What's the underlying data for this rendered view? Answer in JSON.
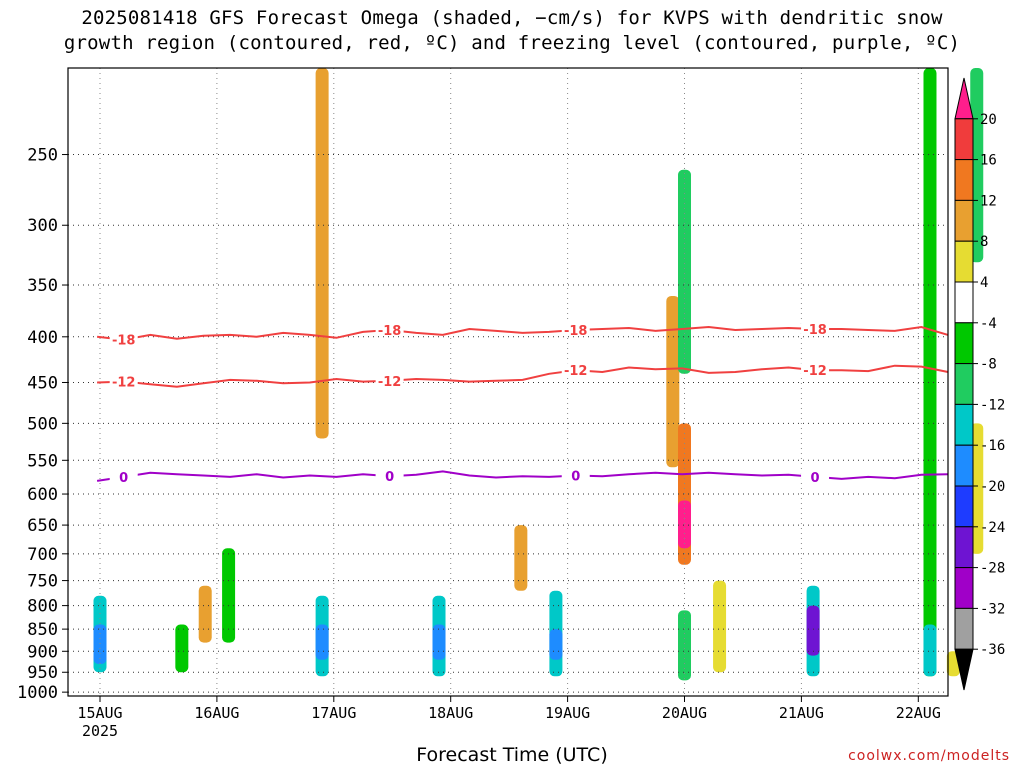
{
  "title_line1": "2025081418 GFS Forecast Omega (shaded, −cm/s) for KVPS with dendritic snow",
  "title_line2": "growth region (contoured, red, ºC) and freezing level (contoured, purple, ºC)",
  "credit": "coolwx.com/modelts",
  "chart_data": {
    "type": "heatmap",
    "title": "2025081418 GFS Forecast Omega (shaded, −cm/s) for KVPS with dendritic snow growth region (contoured, red, ºC) and freezing level (contoured, purple, ºC)",
    "xlabel": "Forecast Time (UTC)",
    "ylabel": "",
    "x_ticks": [
      "15AUG",
      "16AUG",
      "17AUG",
      "18AUG",
      "19AUG",
      "20AUG",
      "21AUG",
      "22AUG"
    ],
    "x_year_label": "2025",
    "y_ticks": [
      250,
      300,
      350,
      400,
      450,
      500,
      550,
      600,
      650,
      700,
      750,
      800,
      850,
      900,
      950,
      1000
    ],
    "ylim": [
      1010,
      200
    ],
    "grid": true,
    "colorbar": {
      "ticks": [
        20,
        16,
        12,
        8,
        4,
        -4,
        -8,
        -12,
        -16,
        -20,
        -24,
        -28,
        -32,
        -36
      ],
      "colors": [
        "#ff1e8c",
        "#f03c3c",
        "#f07820",
        "#e8a030",
        "#e6dc32",
        "#ffffff",
        "#00c800",
        "#20cc60",
        "#00c8c8",
        "#1e8cff",
        "#1e3cff",
        "#6e14d2",
        "#a000c8",
        "#a0a0a0",
        "#000000"
      ]
    },
    "contours": [
      {
        "name": "-18",
        "color": "#f04040",
        "x": [
          0,
          0.25,
          0.5,
          0.75,
          1.0,
          1.25,
          1.5,
          1.75,
          2.0,
          2.25,
          2.5,
          2.75,
          3.0,
          3.25,
          3.5,
          3.75,
          4.0,
          4.25,
          4.5,
          4.75,
          5.0,
          5.25,
          5.5,
          5.75,
          6.0,
          6.25,
          6.5,
          6.75,
          7.0,
          7.25,
          7.5,
          7.75,
          8.0
        ],
        "y": [
          400,
          403,
          398,
          402,
          399,
          398,
          400,
          396,
          398,
          401,
          395,
          393,
          396,
          398,
          392,
          394,
          396,
          395,
          393,
          392,
          391,
          394,
          392,
          390,
          393,
          392,
          391,
          392,
          392,
          393,
          394,
          390,
          398
        ]
      },
      {
        "name": "-12",
        "color": "#f04040",
        "x": [
          0,
          0.25,
          0.5,
          0.75,
          1.0,
          1.25,
          1.5,
          1.75,
          2.0,
          2.25,
          2.5,
          2.75,
          3.0,
          3.25,
          3.5,
          3.75,
          4.0,
          4.25,
          4.5,
          4.75,
          5.0,
          5.25,
          5.5,
          5.75,
          6.0,
          6.25,
          6.5,
          6.75,
          7.0,
          7.25,
          7.5,
          7.75,
          8.0
        ],
        "y": [
          450,
          449,
          452,
          455,
          451,
          447,
          448,
          451,
          450,
          446,
          449,
          448,
          446,
          447,
          449,
          448,
          447,
          440,
          436,
          438,
          433,
          435,
          434,
          439,
          438,
          435,
          433,
          436,
          436,
          437,
          431,
          432,
          438
        ]
      },
      {
        "name": "0",
        "color": "#a000c8",
        "x": [
          0,
          0.25,
          0.5,
          0.75,
          1.0,
          1.25,
          1.5,
          1.75,
          2.0,
          2.25,
          2.5,
          2.75,
          3.0,
          3.25,
          3.5,
          3.75,
          4.0,
          4.25,
          4.5,
          4.75,
          5.0,
          5.25,
          5.5,
          5.75,
          6.0,
          6.25,
          6.5,
          6.75,
          7.0,
          7.25,
          7.5,
          7.75,
          8.0
        ],
        "y": [
          580,
          574,
          568,
          570,
          572,
          574,
          570,
          575,
          572,
          574,
          570,
          573,
          571,
          566,
          572,
          575,
          573,
          574,
          572,
          573,
          570,
          568,
          570,
          568,
          570,
          572,
          571,
          574,
          577,
          574,
          576,
          571,
          570
        ]
      }
    ],
    "cells": [
      {
        "x": 0.0,
        "p": [
          780,
          950
        ],
        "v": -16
      },
      {
        "x": 0.0,
        "p": [
          840,
          930
        ],
        "v": -20
      },
      {
        "x": 0.7,
        "p": [
          840,
          950
        ],
        "v": -8
      },
      {
        "x": 0.9,
        "p": [
          760,
          880
        ],
        "v": 8
      },
      {
        "x": 1.1,
        "p": [
          690,
          880
        ],
        "v": -8
      },
      {
        "x": 1.9,
        "p": [
          780,
          960
        ],
        "v": -16
      },
      {
        "x": 1.9,
        "p": [
          840,
          920
        ],
        "v": -20
      },
      {
        "x": 1.9,
        "p": [
          200,
          520
        ],
        "v": 8
      },
      {
        "x": 2.9,
        "p": [
          780,
          960
        ],
        "v": -16
      },
      {
        "x": 2.9,
        "p": [
          840,
          920
        ],
        "v": -20
      },
      {
        "x": 3.9,
        "p": [
          770,
          960
        ],
        "v": -16
      },
      {
        "x": 3.9,
        "p": [
          850,
          920
        ],
        "v": -20
      },
      {
        "x": 3.6,
        "p": [
          650,
          770
        ],
        "v": 8
      },
      {
        "x": 4.9,
        "p": [
          360,
          560
        ],
        "v": 8
      },
      {
        "x": 5.0,
        "p": [
          260,
          440
        ],
        "v": -12
      },
      {
        "x": 5.0,
        "p": [
          500,
          720
        ],
        "v": 12
      },
      {
        "x": 5.0,
        "p": [
          610,
          690
        ],
        "v": 20
      },
      {
        "x": 5.0,
        "p": [
          810,
          970
        ],
        "v": -12
      },
      {
        "x": 5.3,
        "p": [
          750,
          950
        ],
        "v": 4
      },
      {
        "x": 6.1,
        "p": [
          760,
          960
        ],
        "v": -16
      },
      {
        "x": 6.1,
        "p": [
          800,
          910
        ],
        "v": -28
      },
      {
        "x": 7.1,
        "p": [
          200,
          960
        ],
        "v": -8
      },
      {
        "x": 7.1,
        "p": [
          840,
          960
        ],
        "v": -16
      },
      {
        "x": 7.5,
        "p": [
          200,
          330
        ],
        "v": -12
      },
      {
        "x": 7.5,
        "p": [
          500,
          700
        ],
        "v": 4
      },
      {
        "x": 7.3,
        "p": [
          900,
          960
        ],
        "v": 4
      }
    ]
  }
}
